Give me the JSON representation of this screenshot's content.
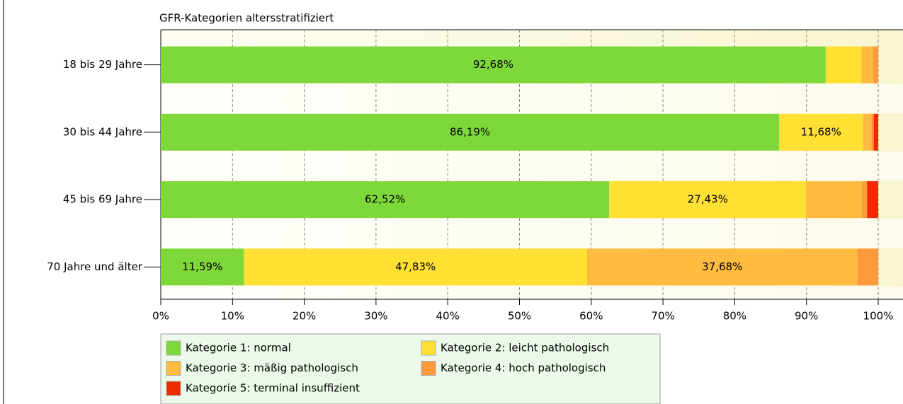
{
  "chart_data": {
    "type": "stacked-barh",
    "title": "GFR-Kategorien altersstratifiziert",
    "categories": [
      "18 bis 29 Jahre",
      "30 bis 44 Jahre",
      "45 bis 69 Jahre",
      "70 Jahre und älter"
    ],
    "series": [
      {
        "name": "Kategorie 1: normal",
        "color": "#7fd83a",
        "values": [
          92.68,
          86.19,
          62.52,
          11.59
        ],
        "value_labels": [
          "92,68%",
          "86,19%",
          "62,52%",
          "11,59%"
        ]
      },
      {
        "name": "Kategorie 2: leicht pathologisch",
        "color": "#ffe033",
        "values": [
          5.0,
          11.68,
          27.43,
          47.83
        ],
        "value_labels": [
          null,
          "11,68%",
          "27,43%",
          "47,83%"
        ]
      },
      {
        "name": "Kategorie 3: mäßig pathologisch",
        "color": "#ffbb40",
        "values": [
          1.6,
          1.2,
          7.8,
          37.68
        ],
        "value_labels": [
          null,
          null,
          null,
          "37,68%"
        ]
      },
      {
        "name": "Kategorie 4: hoch pathologisch",
        "color": "#ff9a3c",
        "values": [
          0.72,
          0.3,
          0.7,
          2.9
        ]
      },
      {
        "name": "Kategorie 5: terminal insuffizient",
        "color": "#ee2a00",
        "values": [
          0,
          0.63,
          1.55,
          0
        ]
      }
    ],
    "xlim": [
      0,
      100
    ],
    "xticks": [
      {
        "value": 0,
        "label": "0%"
      },
      {
        "value": 10,
        "label": "10%"
      },
      {
        "value": 20,
        "label": "20%"
      },
      {
        "value": 30,
        "label": "30%"
      },
      {
        "value": 40,
        "label": "40%"
      },
      {
        "value": 50,
        "label": "50%"
      },
      {
        "value": 60,
        "label": "60%"
      },
      {
        "value": 70,
        "label": "70%"
      },
      {
        "value": 80,
        "label": "80%"
      },
      {
        "value": 90,
        "label": "90%"
      },
      {
        "value": 100,
        "label": "100%"
      }
    ],
    "grid": true
  }
}
